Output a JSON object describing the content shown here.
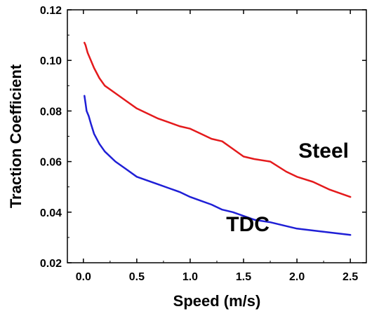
{
  "chart_data": {
    "type": "line",
    "xlabel": "Speed (m/s)",
    "ylabel": "Traction Coefficient",
    "xlim": [
      -0.15,
      2.65
    ],
    "ylim": [
      0.02,
      0.12
    ],
    "xticks": [
      0.0,
      0.5,
      1.0,
      1.5,
      2.0,
      2.5
    ],
    "xtick_labels": [
      "0.0",
      "0.5",
      "1.0",
      "1.5",
      "2.0",
      "2.5"
    ],
    "yticks": [
      0.02,
      0.04,
      0.06,
      0.08,
      0.1,
      0.12
    ],
    "ytick_labels": [
      "0.02",
      "0.04",
      "0.06",
      "0.08",
      "0.10",
      "0.12"
    ],
    "grid": false,
    "series": [
      {
        "name": "Steel",
        "color": "#e41a1c",
        "x": [
          0.01,
          0.02,
          0.04,
          0.07,
          0.1,
          0.15,
          0.2,
          0.3,
          0.4,
          0.5,
          0.6,
          0.7,
          0.8,
          0.9,
          1.0,
          1.1,
          1.2,
          1.3,
          1.4,
          1.5,
          1.6,
          1.75,
          1.9,
          2.0,
          2.15,
          2.3,
          2.5
        ],
        "y": [
          0.107,
          0.106,
          0.103,
          0.1,
          0.097,
          0.093,
          0.09,
          0.087,
          0.084,
          0.081,
          0.079,
          0.077,
          0.0755,
          0.074,
          0.073,
          0.071,
          0.069,
          0.068,
          0.065,
          0.062,
          0.061,
          0.06,
          0.056,
          0.054,
          0.052,
          0.049,
          0.046
        ]
      },
      {
        "name": "TDC",
        "color": "#1f1fd6",
        "x": [
          0.01,
          0.02,
          0.03,
          0.05,
          0.07,
          0.1,
          0.15,
          0.2,
          0.3,
          0.4,
          0.5,
          0.6,
          0.7,
          0.8,
          0.9,
          1.0,
          1.1,
          1.2,
          1.3,
          1.4,
          1.5,
          1.6,
          1.75,
          1.9,
          2.0,
          2.2,
          2.5
        ],
        "y": [
          0.086,
          0.083,
          0.08,
          0.078,
          0.075,
          0.071,
          0.067,
          0.064,
          0.06,
          0.057,
          0.054,
          0.0525,
          0.051,
          0.0495,
          0.048,
          0.046,
          0.0445,
          0.043,
          0.041,
          0.04,
          0.0385,
          0.037,
          0.036,
          0.0345,
          0.0335,
          0.0325,
          0.031
        ]
      }
    ],
    "annotations": [
      {
        "text": "Steel",
        "x": 2.25,
        "y": 0.0615
      },
      {
        "text": "TDC",
        "x": 1.54,
        "y": 0.0325
      }
    ]
  }
}
